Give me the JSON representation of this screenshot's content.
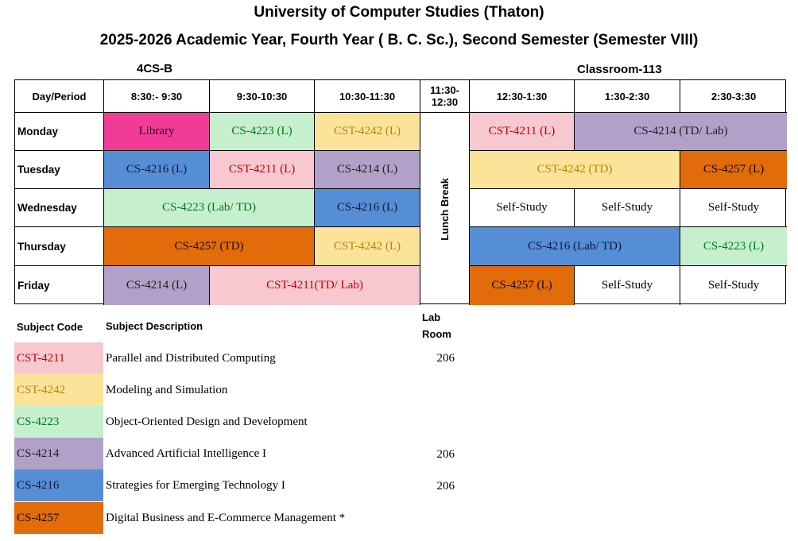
{
  "header": {
    "title": "University of Computer Studies (Thaton)",
    "subtitle": "2025-2026 Academic Year, Fourth Year ( B. C. Sc.), Second Semester (Semester VIII)",
    "section": "4CS-B",
    "classroom": "Classroom-113"
  },
  "colors": {
    "CST-4211": {
      "bg": "#f8c8d0",
      "fg": "#c00000"
    },
    "CST-4242": {
      "bg": "#fbe39a",
      "fg": "#b8860b"
    },
    "CS-4223": {
      "bg": "#c6efce",
      "fg": "#007a1f"
    },
    "CS-4214": {
      "bg": "#b1a0c7",
      "fg": "#1f1f1f"
    },
    "CS-4216": {
      "bg": "#558ed5",
      "fg": "#10173a"
    },
    "CS-4257": {
      "bg": "#e26b0a",
      "fg": "#1a0a00"
    },
    "Library": {
      "bg": "#f03c96",
      "fg": "#3a0020"
    }
  },
  "timetable": {
    "corner": "Day/Period",
    "periods": [
      "8:30:- 9:30",
      "9:30-10:30",
      "10:30-11:30",
      "11:30-12:30",
      "12:30-1:30",
      "1:30-2:30",
      "2:30-3:30"
    ],
    "lunch": "Lunch Break",
    "days": [
      "Monday",
      "Tuesday",
      "Wednesday",
      "Thursday",
      "Friday"
    ],
    "slots": {
      "mon": [
        "Library",
        "CS-4223 (L)",
        "CST-4242 (L)",
        "CST-4211 (L)",
        "CS-4214 (TD/ Lab)"
      ],
      "tue": [
        "CS-4216 (L)",
        "CST-4211 (L)",
        "CS-4214 (L)",
        "CST-4242 (TD)",
        "CS-4257 (L)"
      ],
      "wed": [
        "CS-4223 (Lab/ TD)",
        "CS-4216 (L)",
        "Self-Study",
        "Self-Study",
        "Self-Study"
      ],
      "thu": [
        "CS-4257 (TD)",
        "CST-4242 (L)",
        "CS-4216 (Lab/ TD)",
        "CS-4223 (L)"
      ],
      "fri": [
        "CS-4214 (L)",
        "CST-4211(TD/ Lab)",
        "CS-4257 (L)",
        "Self-Study",
        "Self-Study"
      ]
    }
  },
  "legend": {
    "headers": {
      "code": "Subject Code",
      "desc": "Subject Description",
      "lab": "Lab",
      "room": "Room"
    },
    "rows": [
      {
        "code": "CST-4211",
        "desc": "Parallel and Distributed Computing",
        "room": "206"
      },
      {
        "code": "CST-4242",
        "desc": "Modeling and Simulation",
        "room": ""
      },
      {
        "code": "CS-4223",
        "desc": "Object-Oriented Design and Development",
        "room": ""
      },
      {
        "code": "CS-4214",
        "desc": "Advanced Artificial Intelligence I",
        "room": "206"
      },
      {
        "code": "CS-4216",
        "desc": "Strategies for Emerging Technology I",
        "room": "206"
      },
      {
        "code": "CS-4257",
        "desc": "Digital Business and E-Commerce Management *",
        "room": ""
      }
    ]
  }
}
